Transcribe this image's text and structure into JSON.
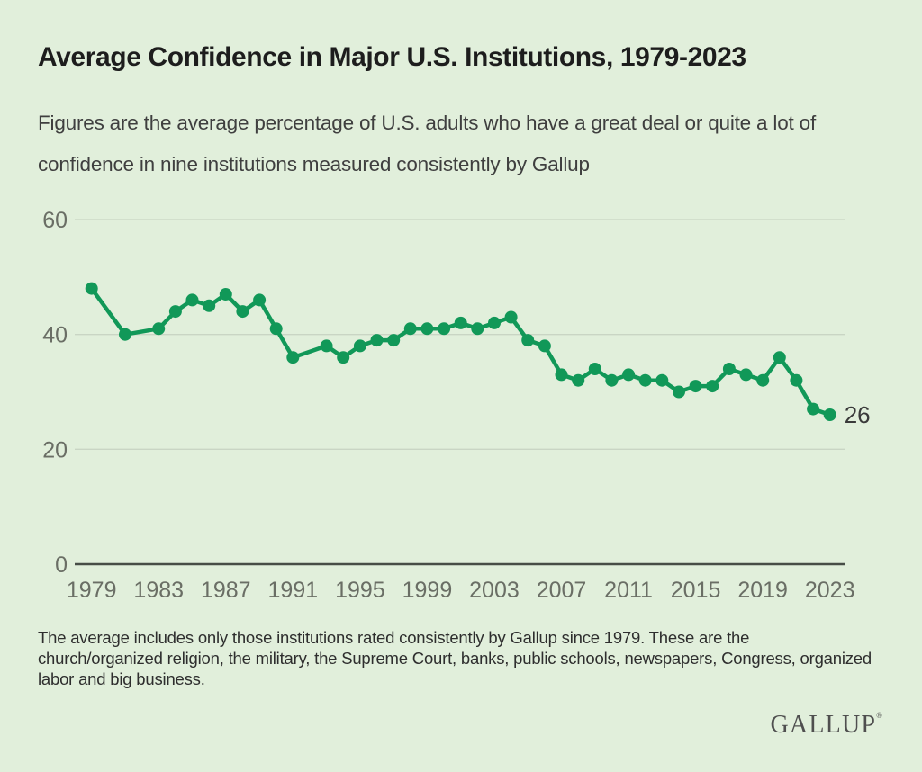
{
  "header": {
    "title": "Average Confidence in Major U.S. Institutions, 1979-2023",
    "subtitle": "Figures are the average percentage of U.S. adults who have a great deal or quite a lot of confidence in nine institutions measured consistently by Gallup"
  },
  "chart_data": {
    "type": "line",
    "title": "Average Confidence in Major U.S. Institutions, 1979-2023",
    "xlabel": "",
    "ylabel": "",
    "ylim": [
      0,
      60
    ],
    "grid": "horizontal",
    "legend": "none",
    "x": [
      1979,
      1981,
      1983,
      1984,
      1985,
      1986,
      1987,
      1988,
      1989,
      1990,
      1991,
      1993,
      1994,
      1995,
      1996,
      1997,
      1998,
      1999,
      2000,
      2001,
      2002,
      2003,
      2004,
      2005,
      2006,
      2007,
      2008,
      2009,
      2010,
      2011,
      2012,
      2013,
      2014,
      2015,
      2016,
      2017,
      2018,
      2019,
      2020,
      2021,
      2022,
      2023
    ],
    "y": [
      48,
      40,
      41,
      44,
      46,
      45,
      47,
      44,
      46,
      41,
      36,
      38,
      36,
      38,
      39,
      39,
      41,
      41,
      41,
      42,
      41,
      42,
      43,
      39,
      38,
      33,
      32,
      34,
      32,
      33,
      32,
      32,
      30,
      31,
      31,
      34,
      33,
      32,
      36,
      32,
      27,
      26
    ],
    "xticks": [
      1979,
      1983,
      1987,
      1991,
      1995,
      1999,
      2003,
      2007,
      2011,
      2015,
      2019,
      2023
    ],
    "yticks": [
      60,
      40,
      20,
      0
    ],
    "end_label": "26"
  },
  "footer": {
    "note": "The average includes only those institutions rated consistently by Gallup since 1979. These are the church/organized religion, the military, the Supreme Court, banks, public schools, newspapers, Congress, organized labor and big business.",
    "logo": "GALLUP",
    "logo_mark": "®"
  },
  "colors": {
    "background": "#e1efdb",
    "line": "#119858",
    "grid": "#c9d5c4",
    "axis": "#474d46",
    "tick_label": "#6a6e65",
    "title": "#1d1d1d",
    "text": "#3f3f3f",
    "note": "#2e2e2e",
    "end_label": "#3a3a3a",
    "logo": "#4f4f4f"
  }
}
